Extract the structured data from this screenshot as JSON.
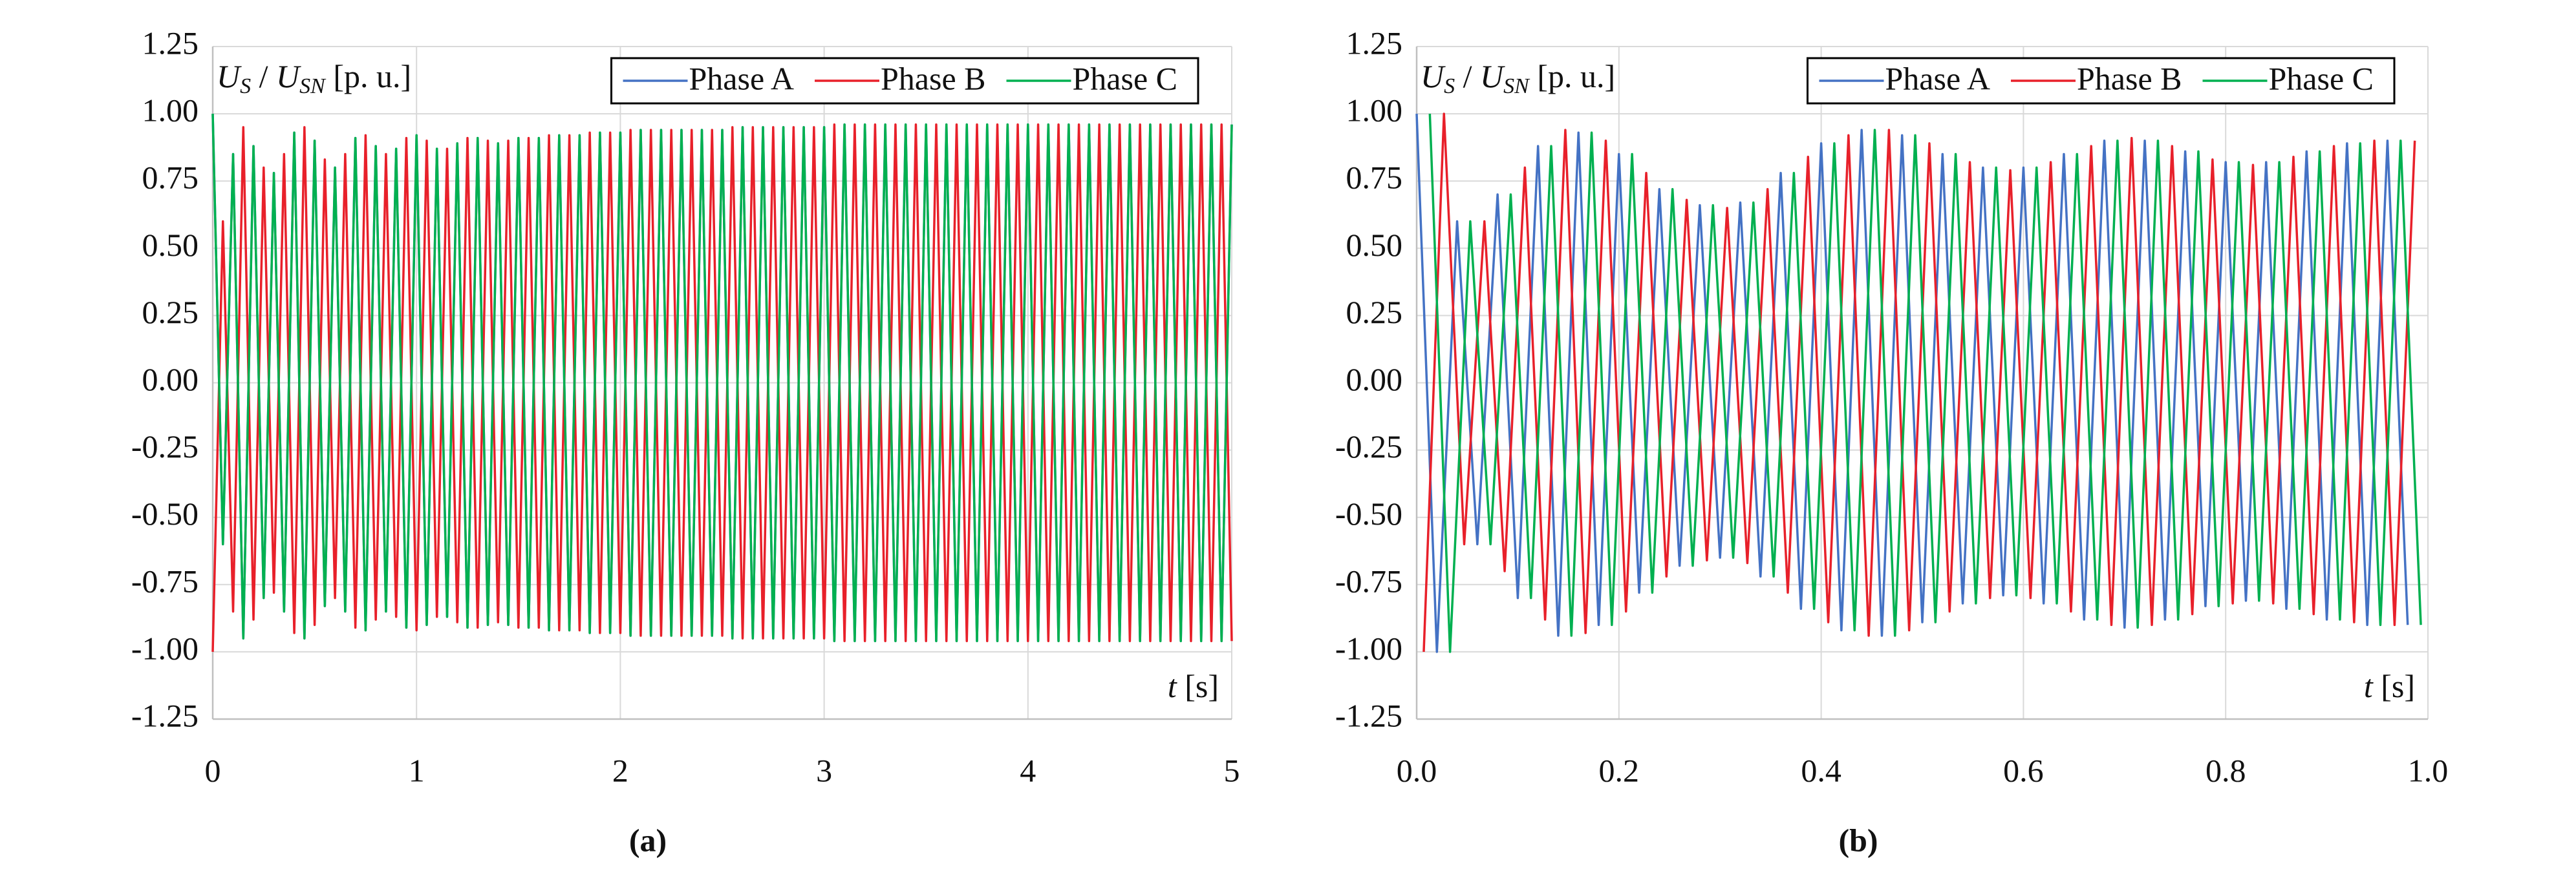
{
  "chart_data": [
    {
      "type": "line",
      "panel_label": "(a)",
      "ylabel": [
        "U",
        "S",
        " / ",
        "U",
        "SN",
        " [p. u.]"
      ],
      "xlabel": [
        "t",
        " [s]"
      ],
      "xlim": [
        0,
        5
      ],
      "xticks": [
        0,
        1,
        2,
        3,
        4,
        5
      ],
      "ylim": [
        -1.25,
        1.25
      ],
      "yticks": [
        {
          "value": -1.25,
          "label": "-1.25"
        },
        {
          "value": -1,
          "label": "-1.00"
        },
        {
          "value": -0.75,
          "label": "-0.75"
        },
        {
          "value": -0.5,
          "label": "-0.50"
        },
        {
          "value": -0.25,
          "label": "-0.25"
        },
        {
          "value": 0,
          "label": "0.00"
        },
        {
          "value": 0.25,
          "label": "0.25"
        },
        {
          "value": 0.5,
          "label": "0.50"
        },
        {
          "value": 0.75,
          "label": "0.75"
        },
        {
          "value": 1,
          "label": "1.00"
        },
        {
          "value": 1.25,
          "label": "1.25"
        }
      ],
      "grid": true,
      "legend": "top-right",
      "x": [
        0,
        0.05,
        0.1,
        0.15,
        0.2,
        0.25,
        0.3,
        0.35,
        0.4,
        0.45,
        0.5,
        0.55,
        0.6,
        0.65,
        0.7,
        0.75,
        0.8,
        0.85,
        0.9,
        0.95,
        1,
        1.05,
        1.1,
        1.15,
        1.2,
        1.25,
        1.3,
        1.35,
        1.4,
        1.45,
        1.5,
        1.55,
        1.6,
        1.65,
        1.7,
        1.75,
        1.8,
        1.85,
        1.9,
        1.95,
        2,
        2.05,
        2.1,
        2.15,
        2.2,
        2.25,
        2.3,
        2.35,
        2.4,
        2.45,
        2.5,
        2.55,
        2.6,
        2.65,
        2.7,
        2.75,
        2.8,
        2.85,
        2.9,
        2.95,
        3,
        3.05,
        3.1,
        3.15,
        3.2,
        3.25,
        3.3,
        3.35,
        3.4,
        3.45,
        3.5,
        3.55,
        3.6,
        3.65,
        3.7,
        3.75,
        3.8,
        3.85,
        3.9,
        3.95,
        4,
        4.05,
        4.1,
        4.15,
        4.2,
        4.25,
        4.3,
        4.35,
        4.4,
        4.45,
        4.5,
        4.55,
        4.6,
        4.65,
        4.7,
        4.75,
        4.8,
        4.85,
        4.9,
        4.95,
        5
      ],
      "series": [
        {
          "name": "Phase A",
          "color": "#4472c4",
          "values": [
            1,
            -0.6,
            0.85,
            -0.95,
            0.88,
            -0.8,
            0.78,
            -0.85,
            0.93,
            -0.95,
            0.9,
            -0.83,
            0.8,
            -0.85,
            0.91,
            -0.92,
            0.88,
            -0.85,
            0.87,
            -0.91,
            0.92,
            -0.9,
            0.87,
            -0.87,
            0.89,
            -0.91,
            0.91,
            -0.9,
            0.89,
            -0.9,
            0.91,
            -0.91,
            0.91,
            -0.92,
            0.92,
            -0.92,
            0.92,
            -0.93,
            0.93,
            -0.93,
            0.93,
            -0.94,
            0.94,
            -0.94,
            0.94,
            -0.94,
            0.94,
            -0.94,
            0.94,
            -0.94,
            0.94,
            -0.95,
            0.95,
            -0.95,
            0.95,
            -0.95,
            0.95,
            -0.95,
            0.95,
            -0.95,
            0.95,
            -0.96,
            0.96,
            -0.96,
            0.96,
            -0.96,
            0.96,
            -0.96,
            0.96,
            -0.96,
            0.96,
            -0.96,
            0.96,
            -0.96,
            0.96,
            -0.96,
            0.96,
            -0.96,
            0.96,
            -0.96,
            0.96,
            -0.96,
            0.96,
            -0.96,
            0.96,
            -0.96,
            0.96,
            -0.96,
            0.96,
            -0.96,
            0.96,
            -0.96,
            0.96,
            -0.96,
            0.96,
            -0.96,
            0.96,
            -0.96,
            0.96,
            -0.96,
            0.96
          ]
        },
        {
          "name": "Phase B",
          "color": "#e8202a",
          "values": [
            -1,
            0.6,
            -0.85,
            0.95,
            -0.88,
            0.8,
            -0.78,
            0.85,
            -0.93,
            0.95,
            -0.9,
            0.83,
            -0.8,
            0.85,
            -0.91,
            0.92,
            -0.88,
            0.85,
            -0.87,
            0.91,
            -0.92,
            0.9,
            -0.87,
            0.87,
            -0.89,
            0.91,
            -0.91,
            0.9,
            -0.89,
            0.9,
            -0.91,
            0.91,
            -0.91,
            0.92,
            -0.92,
            0.92,
            -0.92,
            0.93,
            -0.93,
            0.93,
            -0.93,
            0.94,
            -0.94,
            0.94,
            -0.94,
            0.94,
            -0.94,
            0.94,
            -0.94,
            0.94,
            -0.94,
            0.95,
            -0.95,
            0.95,
            -0.95,
            0.95,
            -0.95,
            0.95,
            -0.95,
            0.95,
            -0.95,
            0.96,
            -0.96,
            0.96,
            -0.96,
            0.96,
            -0.96,
            0.96,
            -0.96,
            0.96,
            -0.96,
            0.96,
            -0.96,
            0.96,
            -0.96,
            0.96,
            -0.96,
            0.96,
            -0.96,
            0.96,
            -0.96,
            0.96,
            -0.96,
            0.96,
            -0.96,
            0.96,
            -0.96,
            0.96,
            -0.96,
            0.96,
            -0.96,
            0.96,
            -0.96,
            0.96,
            -0.96,
            0.96,
            -0.96,
            0.96,
            -0.96,
            0.96,
            -0.96
          ]
        },
        {
          "name": "Phase C",
          "color": "#00b050",
          "values": [
            1,
            -0.6,
            0.85,
            -0.95,
            0.88,
            -0.8,
            0.78,
            -0.85,
            0.93,
            -0.95,
            0.9,
            -0.83,
            0.8,
            -0.85,
            0.91,
            -0.92,
            0.88,
            -0.85,
            0.87,
            -0.91,
            0.92,
            -0.9,
            0.87,
            -0.87,
            0.89,
            -0.91,
            0.91,
            -0.9,
            0.89,
            -0.9,
            0.91,
            -0.91,
            0.91,
            -0.92,
            0.92,
            -0.92,
            0.92,
            -0.93,
            0.93,
            -0.93,
            0.93,
            -0.94,
            0.94,
            -0.94,
            0.94,
            -0.94,
            0.94,
            -0.94,
            0.94,
            -0.94,
            0.94,
            -0.95,
            0.95,
            -0.95,
            0.95,
            -0.95,
            0.95,
            -0.95,
            0.95,
            -0.95,
            0.95,
            -0.96,
            0.96,
            -0.96,
            0.96,
            -0.96,
            0.96,
            -0.96,
            0.96,
            -0.96,
            0.96,
            -0.96,
            0.96,
            -0.96,
            0.96,
            -0.96,
            0.96,
            -0.96,
            0.96,
            -0.96,
            0.96,
            -0.96,
            0.96,
            -0.96,
            0.96,
            -0.96,
            0.96,
            -0.96,
            0.96,
            -0.96,
            0.96,
            -0.96,
            0.96,
            -0.96,
            0.96,
            -0.96,
            0.96,
            -0.96,
            0.96,
            -0.96,
            0.96
          ]
        }
      ]
    },
    {
      "type": "line",
      "panel_label": "(b)",
      "ylabel": [
        "U",
        "S",
        " / ",
        "U",
        "SN",
        " [p. u.]"
      ],
      "xlabel": [
        "t",
        " [s]"
      ],
      "xlim": [
        0,
        1
      ],
      "xticks": [
        {
          "value": 0,
          "label": "0.0"
        },
        0.2,
        0.4,
        0.6,
        0.8,
        {
          "value": 1,
          "label": "1.0"
        }
      ],
      "ylim": [
        -1.25,
        1.25
      ],
      "yticks": [
        {
          "value": -1.25,
          "label": "-1.25"
        },
        {
          "value": -1,
          "label": "-1.00"
        },
        {
          "value": -0.75,
          "label": "-0.75"
        },
        {
          "value": -0.5,
          "label": "-0.50"
        },
        {
          "value": -0.25,
          "label": "-0.25"
        },
        {
          "value": 0,
          "label": "0.00"
        },
        {
          "value": 0.25,
          "label": "0.25"
        },
        {
          "value": 0.5,
          "label": "0.50"
        },
        {
          "value": 0.75,
          "label": "0.75"
        },
        {
          "value": 1,
          "label": "1.00"
        },
        {
          "value": 1.25,
          "label": "1.25"
        }
      ],
      "grid": true,
      "legend": "top-right",
      "series": [
        {
          "name": "Phase A",
          "color": "#4472c4",
          "x": [
            0,
            0.02,
            0.04,
            0.06,
            0.08,
            0.1,
            0.12,
            0.14,
            0.16,
            0.18,
            0.2,
            0.22,
            0.24,
            0.26,
            0.28,
            0.3,
            0.32,
            0.34,
            0.36,
            0.38,
            0.4,
            0.42,
            0.44,
            0.46,
            0.48,
            0.5,
            0.52,
            0.54,
            0.56,
            0.58,
            0.6,
            0.62,
            0.64,
            0.66,
            0.68,
            0.7,
            0.72,
            0.74,
            0.76,
            0.78,
            0.8,
            0.82,
            0.84,
            0.86,
            0.88,
            0.9,
            0.92,
            0.94,
            0.96,
            0.98
          ],
          "values": [
            1,
            -1,
            0.6,
            -0.6,
            0.7,
            -0.8,
            0.88,
            -0.94,
            0.93,
            -0.9,
            0.85,
            -0.78,
            0.72,
            -0.68,
            0.66,
            -0.65,
            0.67,
            -0.72,
            0.78,
            -0.84,
            0.89,
            -0.92,
            0.94,
            -0.94,
            0.92,
            -0.89,
            0.85,
            -0.82,
            0.8,
            -0.79,
            0.8,
            -0.82,
            0.85,
            -0.88,
            0.9,
            -0.91,
            0.9,
            -0.88,
            0.86,
            -0.83,
            0.82,
            -0.81,
            0.82,
            -0.84,
            0.86,
            -0.88,
            0.89,
            -0.9,
            0.9,
            -0.9
          ]
        },
        {
          "name": "Phase B",
          "color": "#e8202a",
          "x": [
            0.007,
            0.027,
            0.047,
            0.067,
            0.087,
            0.107,
            0.127,
            0.147,
            0.167,
            0.187,
            0.207,
            0.227,
            0.247,
            0.267,
            0.287,
            0.307,
            0.327,
            0.347,
            0.367,
            0.387,
            0.407,
            0.427,
            0.447,
            0.467,
            0.487,
            0.507,
            0.527,
            0.547,
            0.567,
            0.587,
            0.607,
            0.627,
            0.647,
            0.667,
            0.687,
            0.707,
            0.727,
            0.747,
            0.767,
            0.787,
            0.807,
            0.827,
            0.847,
            0.867,
            0.887,
            0.907,
            0.927,
            0.947,
            0.967,
            0.987
          ],
          "values": [
            -1,
            1,
            -0.6,
            0.6,
            -0.7,
            0.8,
            -0.88,
            0.94,
            -0.93,
            0.9,
            -0.85,
            0.78,
            -0.72,
            0.68,
            -0.66,
            0.65,
            -0.67,
            0.72,
            -0.78,
            0.84,
            -0.89,
            0.92,
            -0.94,
            0.94,
            -0.92,
            0.89,
            -0.85,
            0.82,
            -0.8,
            0.79,
            -0.8,
            0.82,
            -0.85,
            0.88,
            -0.9,
            0.91,
            -0.9,
            0.88,
            -0.86,
            0.83,
            -0.82,
            0.81,
            -0.82,
            0.84,
            -0.86,
            0.88,
            -0.89,
            0.9,
            -0.9,
            0.9
          ]
        },
        {
          "name": "Phase C",
          "color": "#00b050",
          "x": [
            0.013,
            0.033,
            0.053,
            0.073,
            0.093,
            0.113,
            0.133,
            0.153,
            0.173,
            0.193,
            0.213,
            0.233,
            0.253,
            0.273,
            0.293,
            0.313,
            0.333,
            0.353,
            0.373,
            0.393,
            0.413,
            0.433,
            0.453,
            0.473,
            0.493,
            0.513,
            0.533,
            0.553,
            0.573,
            0.593,
            0.613,
            0.633,
            0.653,
            0.673,
            0.693,
            0.713,
            0.733,
            0.753,
            0.773,
            0.793,
            0.813,
            0.833,
            0.853,
            0.873,
            0.893,
            0.913,
            0.933,
            0.953,
            0.973,
            0.993
          ],
          "values": [
            1,
            -1,
            0.6,
            -0.6,
            0.7,
            -0.8,
            0.88,
            -0.94,
            0.93,
            -0.9,
            0.85,
            -0.78,
            0.72,
            -0.68,
            0.66,
            -0.65,
            0.67,
            -0.72,
            0.78,
            -0.84,
            0.89,
            -0.92,
            0.94,
            -0.94,
            0.92,
            -0.89,
            0.85,
            -0.82,
            0.8,
            -0.79,
            0.8,
            -0.82,
            0.85,
            -0.88,
            0.9,
            -0.91,
            0.9,
            -0.88,
            0.86,
            -0.83,
            0.82,
            -0.81,
            0.82,
            -0.84,
            0.86,
            -0.88,
            0.89,
            -0.9,
            0.9,
            -0.9
          ]
        }
      ]
    }
  ]
}
